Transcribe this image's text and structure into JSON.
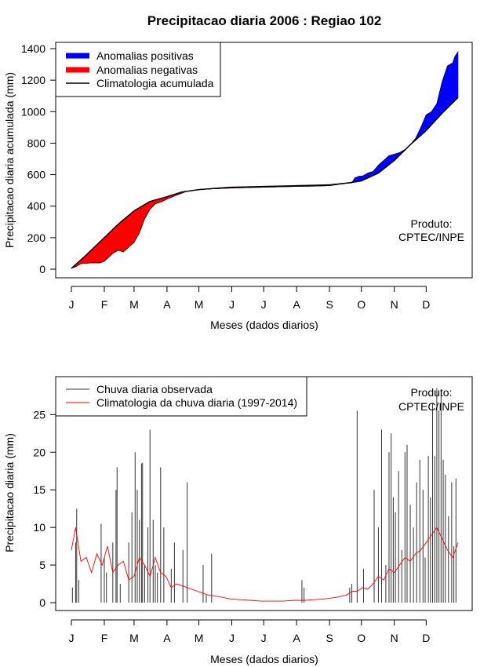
{
  "chart_data": [
    {
      "type": "area",
      "title": "Precipitacao diaria 2006 : Regiao 102",
      "xlabel": "Meses (dados diarios)",
      "ylabel": "Precipitacao diaria acumulada (mm)",
      "xlim": [
        1,
        365
      ],
      "ylim": [
        0,
        1400
      ],
      "yticks": [
        0,
        200,
        400,
        600,
        800,
        1000,
        1200,
        1400
      ],
      "month_labels": [
        "J",
        "F",
        "M",
        "A",
        "M",
        "J",
        "J",
        "A",
        "S",
        "O",
        "N",
        "D"
      ],
      "month_days": [
        1,
        32,
        60,
        91,
        121,
        152,
        182,
        213,
        244,
        274,
        305,
        335
      ],
      "note": [
        "Produto:",
        "CPTEC/INPE"
      ],
      "legend": [
        {
          "label": "Anomalias positivas",
          "color": "#0000ff"
        },
        {
          "label": "Anomalias negativas",
          "color": "#ff0000"
        },
        {
          "label": "Climatologia acumulada",
          "color": "#000000"
        }
      ],
      "climatology_cumulative": {
        "x": [
          1,
          15,
          32,
          45,
          60,
          75,
          91,
          105,
          121,
          140,
          152,
          182,
          213,
          244,
          262,
          274,
          290,
          305,
          320,
          335,
          350,
          365
        ],
        "y": [
          5,
          90,
          200,
          285,
          370,
          430,
          460,
          490,
          505,
          515,
          520,
          525,
          530,
          535,
          548,
          560,
          610,
          690,
          790,
          880,
          990,
          1090
        ]
      },
      "observed_cumulative": {
        "x": [
          1,
          5,
          10,
          20,
          28,
          32,
          40,
          45,
          50,
          55,
          60,
          65,
          70,
          75,
          80,
          85,
          91,
          100,
          110,
          121,
          135,
          152,
          182,
          213,
          230,
          244,
          260,
          265,
          268,
          272,
          275,
          280,
          285,
          290,
          295,
          300,
          305,
          310,
          315,
          320,
          325,
          330,
          335,
          340,
          345,
          350,
          355,
          360,
          362,
          365
        ],
        "y": [
          5,
          15,
          35,
          40,
          40,
          50,
          100,
          120,
          110,
          140,
          170,
          230,
          320,
          380,
          415,
          425,
          445,
          470,
          495,
          505,
          510,
          515,
          520,
          525,
          527,
          530,
          545,
          548,
          580,
          590,
          590,
          610,
          620,
          660,
          690,
          720,
          730,
          740,
          760,
          790,
          830,
          900,
          980,
          1000,
          1050,
          1190,
          1290,
          1310,
          1350,
          1380
        ]
      }
    },
    {
      "type": "bar+line",
      "xlabel": "Meses (dados diarios)",
      "ylabel": "Precipitacao diaria (mm)",
      "xlim": [
        1,
        365
      ],
      "ylim": [
        0,
        29
      ],
      "yticks": [
        0,
        5,
        10,
        15,
        20,
        25
      ],
      "month_labels": [
        "J",
        "F",
        "M",
        "A",
        "M",
        "J",
        "J",
        "A",
        "S",
        "O",
        "N",
        "D"
      ],
      "month_days": [
        1,
        32,
        60,
        91,
        121,
        152,
        182,
        213,
        244,
        274,
        305,
        335
      ],
      "note": [
        "Produto:",
        "CPTEC/INPE"
      ],
      "legend": [
        {
          "label": "Chuva diaria observada",
          "color": "#333333"
        },
        {
          "label": "Climatologia da chuva diaria (1997-2014)",
          "color": "#ff0000"
        }
      ],
      "observed_daily_peaks": {
        "day": [
          2,
          5,
          6,
          8,
          29,
          32,
          34,
          40,
          43,
          44,
          47,
          55,
          58,
          61,
          63,
          65,
          67,
          68,
          70,
          73,
          75,
          78,
          80,
          82,
          85,
          88,
          95,
          98,
          106,
          110,
          125,
          128,
          133,
          218,
          220,
          263,
          265,
          270,
          276,
          286,
          290,
          293,
          297,
          300,
          302,
          304,
          306,
          309,
          312,
          315,
          317,
          320,
          323,
          326,
          329,
          332,
          334,
          337,
          339,
          341,
          343,
          345,
          347,
          349,
          351,
          353,
          356,
          359,
          361,
          363
        ],
        "value": [
          2,
          8,
          12.5,
          3,
          10.5,
          6,
          4,
          8,
          15,
          18,
          2.5,
          8,
          12,
          20,
          15,
          11,
          18.5,
          18.6,
          5,
          10,
          23,
          11,
          5,
          4,
          18,
          10,
          4.5,
          8,
          7,
          16,
          5,
          1,
          6.5,
          3,
          2,
          2,
          2.5,
          25.5,
          4.5,
          15,
          10,
          23,
          5,
          20,
          22.5,
          14,
          12,
          17.5,
          7,
          20,
          21,
          13,
          10,
          16,
          19,
          15,
          6,
          19.5,
          14,
          26.5,
          19.5,
          28.5,
          25.5,
          28,
          19,
          17,
          11.5,
          16,
          7.5,
          16.5
        ]
      },
      "climatology_daily": {
        "day": [
          1,
          5,
          10,
          15,
          20,
          25,
          30,
          35,
          40,
          45,
          50,
          55,
          60,
          65,
          70,
          75,
          80,
          85,
          90,
          95,
          100,
          110,
          120,
          130,
          140,
          150,
          160,
          170,
          180,
          190,
          200,
          210,
          220,
          230,
          240,
          250,
          260,
          265,
          270,
          275,
          280,
          285,
          290,
          295,
          300,
          305,
          310,
          315,
          320,
          325,
          330,
          335,
          340,
          345,
          350,
          355,
          360,
          365
        ],
        "value": [
          7,
          10,
          5.5,
          6,
          4,
          6.5,
          5,
          7.5,
          4,
          5,
          5.5,
          3,
          3.5,
          6,
          5,
          3.5,
          6,
          4,
          3.5,
          2,
          2.5,
          2,
          1.5,
          1,
          0.8,
          0.5,
          0.4,
          0.3,
          0.2,
          0.2,
          0.2,
          0.3,
          0.3,
          0.4,
          0.5,
          0.7,
          1,
          1.5,
          1.5,
          2,
          1.8,
          2.5,
          3.5,
          3,
          4.5,
          4,
          5,
          6,
          5.5,
          6.5,
          7,
          8,
          9,
          10,
          8.5,
          7,
          6,
          8
        ]
      }
    }
  ]
}
